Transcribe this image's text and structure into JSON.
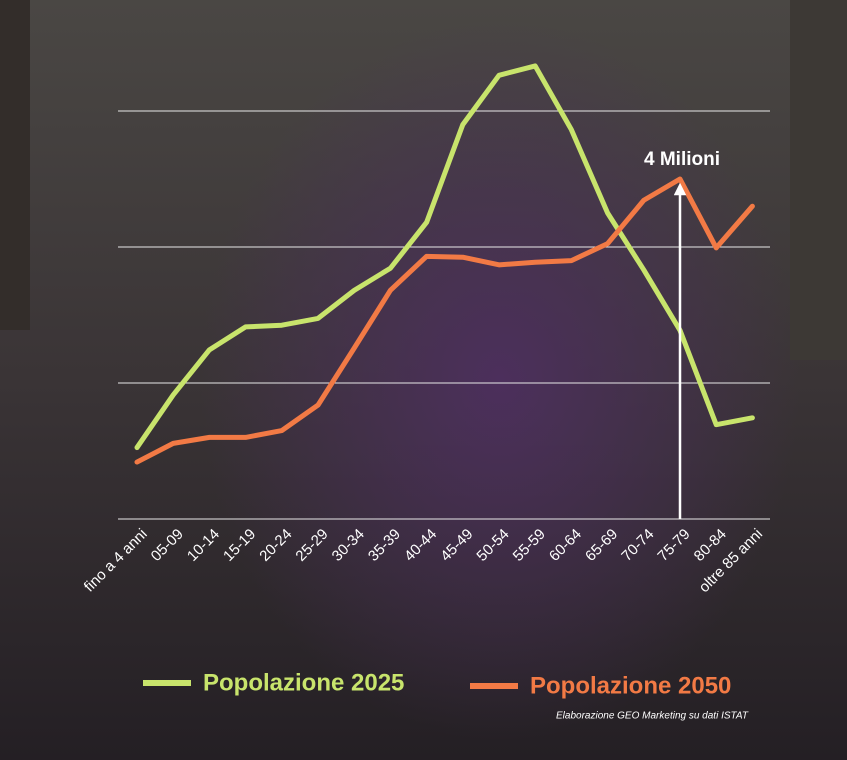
{
  "chart_data": {
    "type": "line",
    "categories": [
      "fino a 4 anni",
      "05-09",
      "10-14",
      "15-19",
      "20-24",
      "25-29",
      "30-34",
      "35-39",
      "40-44",
      "45-49",
      "50-54",
      "55-59",
      "60-64",
      "65-69",
      "70-74",
      "75-79",
      "80-84",
      "oltre 85 anni"
    ],
    "series": [
      {
        "name": "Popolazione 2025",
        "color": "#c8e46c",
        "values": [
          0.84,
          1.46,
          1.99,
          2.26,
          2.28,
          2.36,
          2.69,
          2.95,
          3.49,
          4.64,
          5.22,
          5.33,
          4.58,
          3.6,
          2.93,
          2.22,
          1.11,
          1.19
        ]
      },
      {
        "name": "Popolazione 2050",
        "color": "#f27a45",
        "values": [
          0.67,
          0.89,
          0.96,
          0.96,
          1.04,
          1.34,
          2.01,
          2.69,
          3.09,
          3.08,
          2.99,
          3.02,
          3.04,
          3.24,
          3.75,
          4.0,
          3.19,
          3.68
        ]
      }
    ],
    "ylim": [
      0,
      6
    ],
    "yticks": [
      0,
      1.6,
      3.2,
      4.8
    ],
    "grid": true,
    "annotation": {
      "label": "4 Milioni",
      "value": 4,
      "category": "75-79"
    },
    "source": "Elaborazione GEO Marketing su dati ISTAT"
  }
}
